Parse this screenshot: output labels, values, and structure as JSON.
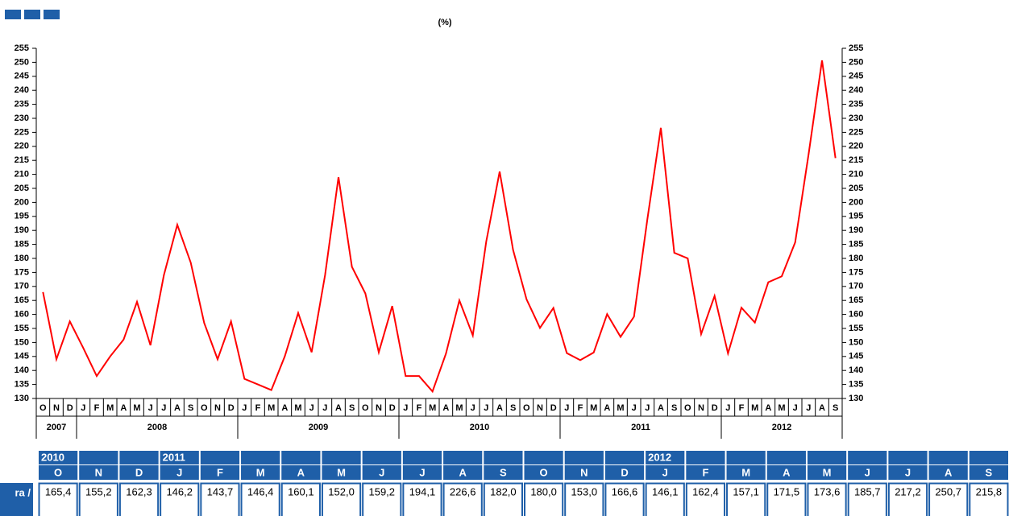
{
  "chart_data": {
    "type": "line",
    "subtitle": "(%)",
    "categories": [
      "O",
      "N",
      "D",
      "J",
      "F",
      "M",
      "A",
      "M",
      "J",
      "J",
      "A",
      "S",
      "O",
      "N",
      "D",
      "J",
      "F",
      "M",
      "A",
      "M",
      "J",
      "J",
      "A",
      "S",
      "O",
      "N",
      "D",
      "J",
      "F",
      "M",
      "A",
      "M",
      "J",
      "J",
      "A",
      "S",
      "O",
      "N",
      "D",
      "J",
      "F",
      "M",
      "A",
      "M",
      "J",
      "J",
      "A",
      "S",
      "O",
      "N",
      "D",
      "J",
      "F",
      "M",
      "A",
      "M",
      "J",
      "J",
      "A",
      "S"
    ],
    "years": [
      "2007",
      "2008",
      "2009",
      "2010",
      "2011",
      "2012"
    ],
    "series": [
      {
        "color": "#ff0000",
        "values": [
          168,
          144,
          157.5,
          148,
          138,
          145,
          151,
          164.5,
          149,
          174,
          192,
          178.5,
          157,
          144,
          157.5,
          137,
          135,
          133,
          145,
          160.5,
          146.5,
          174,
          209,
          177,
          167.5,
          146.5,
          163,
          138,
          138,
          132.5,
          146,
          165,
          152.5,
          186,
          211,
          183,
          165.4,
          155.2,
          162.3,
          146.2,
          143.7,
          146.4,
          160.1,
          152.0,
          159.2,
          194.1,
          226.6,
          182.0,
          180.0,
          153.0,
          166.6,
          146.1,
          162.4,
          157.1,
          171.5,
          173.6,
          185.7,
          217.2,
          250.7,
          215.8
        ]
      }
    ],
    "ylim": [
      130,
      255
    ],
    "yticks": [
      130,
      135,
      140,
      145,
      150,
      155,
      160,
      165,
      170,
      175,
      180,
      185,
      190,
      195,
      200,
      205,
      210,
      215,
      220,
      225,
      230,
      235,
      240,
      245,
      250,
      255
    ]
  },
  "table": {
    "row_label": "ra /",
    "year_row": [
      "2010",
      null,
      null,
      "2011",
      null,
      null,
      null,
      null,
      null,
      null,
      null,
      null,
      null,
      null,
      null,
      "2012",
      null,
      null,
      null,
      null,
      null,
      null,
      null,
      null
    ],
    "months": [
      "O",
      "N",
      "D",
      "J",
      "F",
      "M",
      "A",
      "M",
      "J",
      "J",
      "A",
      "S",
      "O",
      "N",
      "D",
      "J",
      "F",
      "M",
      "A",
      "M",
      "J",
      "J",
      "A",
      "S"
    ],
    "values": [
      "165,4",
      "155,2",
      "162,3",
      "146,2",
      "143,7",
      "146,4",
      "160,1",
      "152,0",
      "159,2",
      "194,1",
      "226,6",
      "182,0",
      "180,0",
      "153,0",
      "166,6",
      "146,1",
      "162,4",
      "157,1",
      "171,5",
      "173,6",
      "185,7",
      "217,2",
      "250,7",
      "215,8"
    ]
  }
}
